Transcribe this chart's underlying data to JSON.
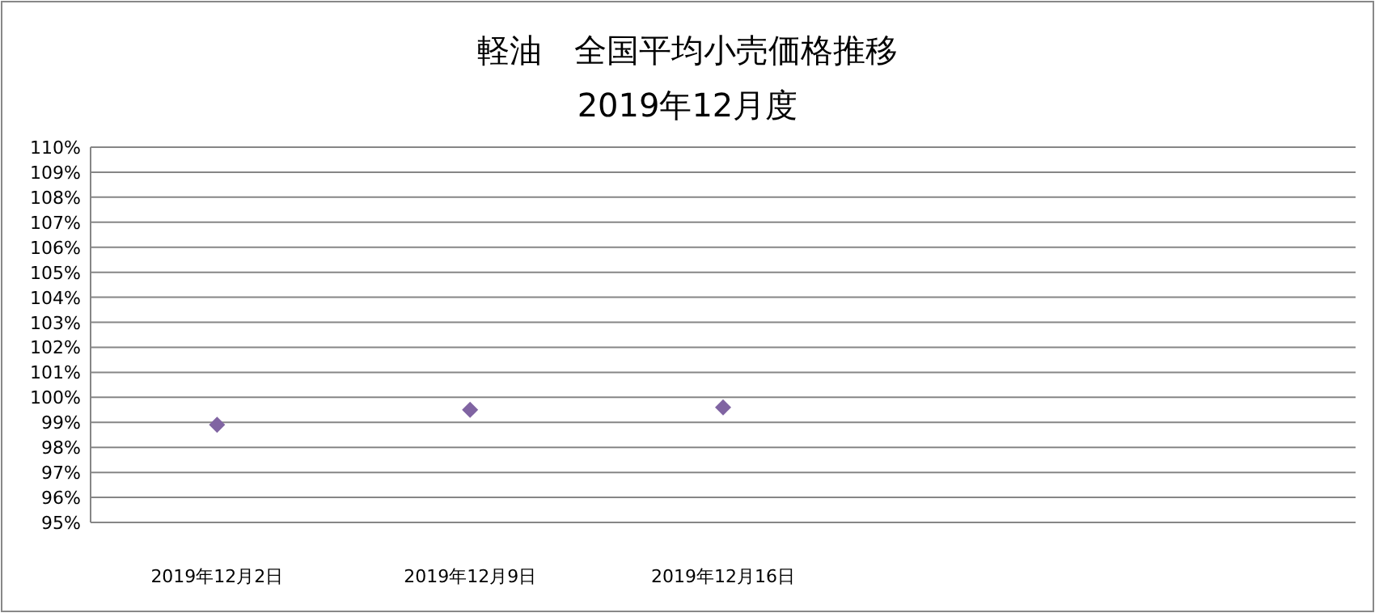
{
  "chart_data": {
    "type": "scatter",
    "title": "軽油　全国平均小売価格推移",
    "subtitle": "2019年12月度",
    "categories": [
      "2019年12月2日",
      "2019年12月9日",
      "2019年12月16日",
      null,
      null
    ],
    "series": [
      {
        "color": "#8064a2",
        "values": [
          98.9,
          99.5,
          99.6,
          null,
          null
        ]
      }
    ],
    "ylim": [
      95,
      110
    ],
    "yticks": [
      {
        "value": 95,
        "label": "95%"
      },
      {
        "value": 96,
        "label": "96%"
      },
      {
        "value": 97,
        "label": "97%"
      },
      {
        "value": 98,
        "label": "98%"
      },
      {
        "value": 99,
        "label": "99%"
      },
      {
        "value": 100,
        "label": "100%"
      },
      {
        "value": 101,
        "label": "101%"
      },
      {
        "value": 102,
        "label": "102%"
      },
      {
        "value": 103,
        "label": "103%"
      },
      {
        "value": 104,
        "label": "104%"
      },
      {
        "value": 105,
        "label": "105%"
      },
      {
        "value": 106,
        "label": "106%"
      },
      {
        "value": 107,
        "label": "107%"
      },
      {
        "value": 108,
        "label": "108%"
      },
      {
        "value": 109,
        "label": "109%"
      },
      {
        "value": 110,
        "label": "110%"
      }
    ],
    "grid": "y",
    "marker": "diamond"
  }
}
